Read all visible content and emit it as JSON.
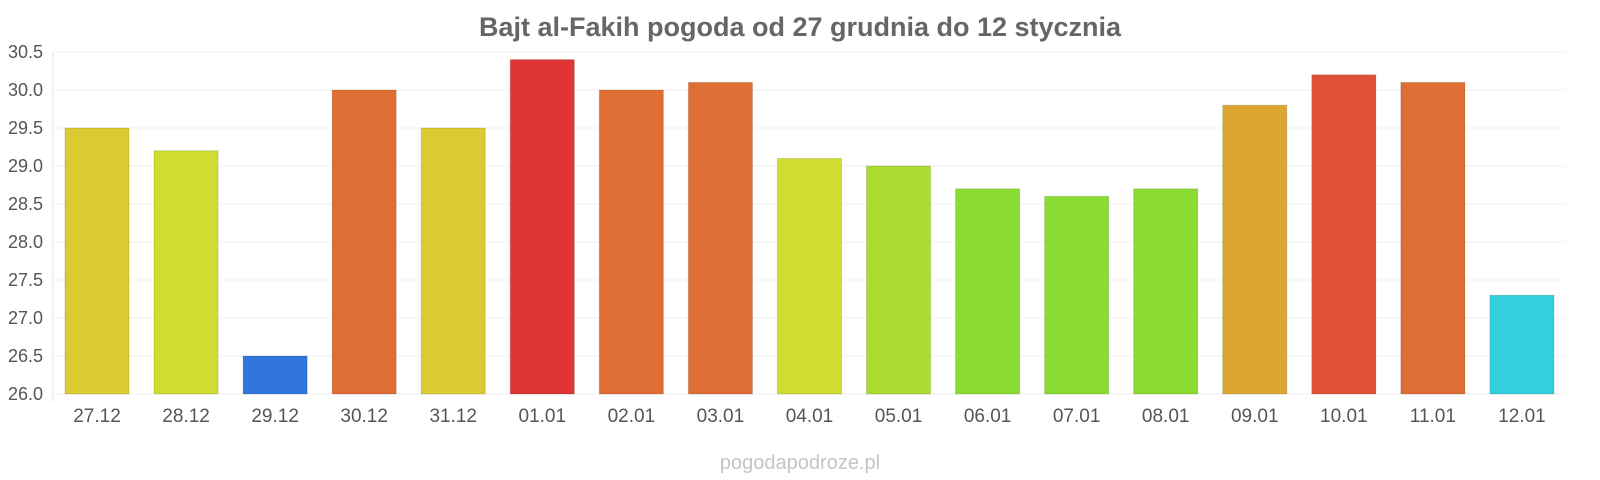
{
  "chart_data": {
    "type": "bar",
    "title": "Bajt al-Fakih pogoda od 27 grudnia do 12 stycznia",
    "xlabel": "",
    "ylabel": "",
    "ylim": [
      26.0,
      30.5
    ],
    "yticks": [
      "26.0",
      "26.5",
      "27.0",
      "27.5",
      "28.0",
      "28.5",
      "29.0",
      "29.5",
      "30.0",
      "30.5"
    ],
    "grid": true,
    "legend": "none",
    "categories": [
      "27.12",
      "28.12",
      "29.12",
      "30.12",
      "31.12",
      "01.01",
      "02.01",
      "03.01",
      "04.01",
      "05.01",
      "06.01",
      "07.01",
      "08.01",
      "09.01",
      "10.01",
      "11.01",
      "12.01"
    ],
    "values": [
      29.5,
      29.2,
      26.5,
      30.0,
      29.5,
      30.4,
      30.0,
      30.1,
      29.1,
      29.0,
      28.7,
      28.6,
      28.7,
      29.8,
      30.2,
      30.1,
      27.3
    ],
    "colors": [
      "#dbcb32",
      "#d0dc32",
      "#3275dc",
      "#df6e34",
      "#dbcb32",
      "#df3534",
      "#df6e34",
      "#df6e34",
      "#d0dc32",
      "#aadc32",
      "#8bdc32",
      "#8bdc32",
      "#8bdc32",
      "#dca632",
      "#df5034",
      "#df6e34",
      "#32cfdc"
    ]
  },
  "watermark": "pogodapodroze.pl"
}
